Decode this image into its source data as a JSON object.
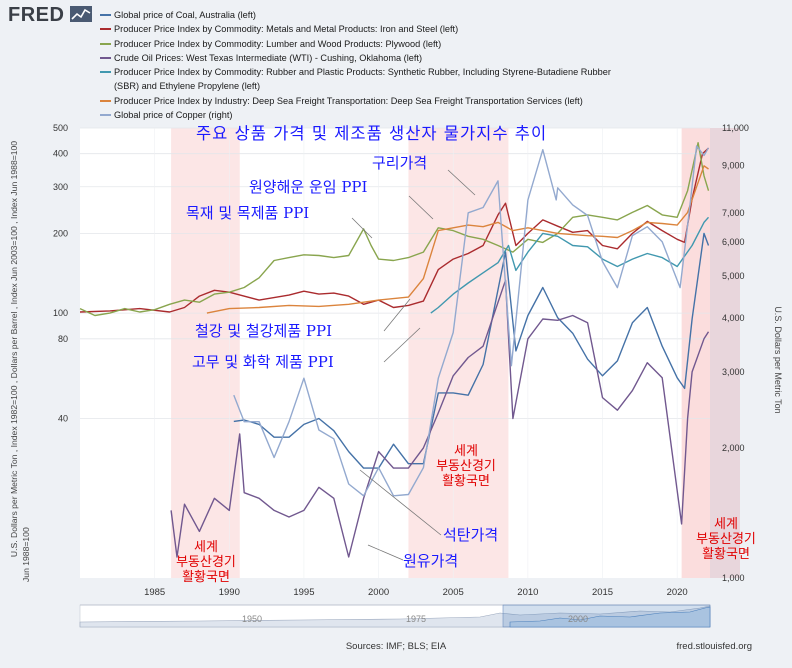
{
  "brand": {
    "name": "FRED"
  },
  "legend": [
    {
      "label": "Global price of Coal, Australia (left)",
      "color": "#4572a7"
    },
    {
      "label": "Producer Price Index by Commodity: Metals and Metal Products: Iron and Steel (left)",
      "color": "#aa2b2e"
    },
    {
      "label": "Producer Price Index by Commodity: Lumber and Wood Products: Plywood (left)",
      "color": "#89a54e"
    },
    {
      "label": "Crude Oil Prices: West Texas Intermediate (WTI) - Cushing, Oklahoma (left)",
      "color": "#71588f"
    },
    {
      "label": "Producer Price Index by Commodity: Rubber and Plastic Products: Synthetic Rubber, Including Styrene-Butadiene Rubber",
      "label_cont": "(SBR) and Ethylene Propylene (left)",
      "color": "#4198af"
    },
    {
      "label": "Producer Price Index by Industry: Deep Sea Freight Transportation: Deep Sea Freight Transportation Services (left)",
      "color": "#db843d"
    },
    {
      "label": "Global price of Copper (right)",
      "color": "#93a9cf"
    }
  ],
  "chart_data": {
    "type": "line",
    "title": "주요 상품 가격 및 제조품 생산자 물가지수 추이",
    "x_ticks": [
      "1985",
      "1990",
      "1995",
      "2000",
      "2005",
      "2010",
      "2015",
      "2020"
    ],
    "x_range": [
      1980,
      2022.2
    ],
    "y_left": {
      "scale": "log",
      "label": "U.S. Dollars per Metric Ton , Index 1982=100 , Dollars per Barrel , Index Jun 2003=100 , Index Jun 1988=100",
      "range": [
        10,
        500
      ],
      "ticks": [
        "500",
        "400",
        "300",
        "200",
        "100",
        "80",
        "40"
      ]
    },
    "y_right": {
      "scale": "log",
      "label": "U.S. Dollars per Metric Ton",
      "range": [
        1000,
        11000
      ],
      "ticks": [
        "11,000",
        "9,000",
        "7,000",
        "6,000",
        "5,000",
        "4,000",
        "3,000",
        "2,000",
        "1,000"
      ]
    },
    "shaded_periods": [
      {
        "start": 1986.1,
        "end": 1990.7,
        "label": "세계 부동산경기 활황국면"
      },
      {
        "start": 2002.0,
        "end": 2008.7,
        "label": "세계 부동산경기 활황국면"
      },
      {
        "start": 2020.3,
        "end": 2022.2,
        "label": "세계 부동산경기 활황국면"
      }
    ],
    "series": [
      {
        "name": "Global price of Coal, Australia",
        "axis": "left",
        "color": "#4572a7",
        "points": [
          [
            1990.3,
            39
          ],
          [
            1991,
            39.5
          ],
          [
            1992,
            38
          ],
          [
            1993,
            34
          ],
          [
            1994,
            34
          ],
          [
            1995,
            38
          ],
          [
            1996,
            40
          ],
          [
            1997,
            36
          ],
          [
            1998,
            30
          ],
          [
            1999,
            26
          ],
          [
            2000,
            26
          ],
          [
            2001,
            32
          ],
          [
            2002,
            27
          ],
          [
            2003,
            27
          ],
          [
            2004,
            50
          ],
          [
            2005,
            50
          ],
          [
            2006,
            49
          ],
          [
            2007,
            64
          ],
          [
            2008.5,
            170
          ],
          [
            2009.2,
            72
          ],
          [
            2010,
            98
          ],
          [
            2011,
            125
          ],
          [
            2012,
            96
          ],
          [
            2013,
            84
          ],
          [
            2014,
            67
          ],
          [
            2015,
            58
          ],
          [
            2016,
            66
          ],
          [
            2017,
            92
          ],
          [
            2018,
            105
          ],
          [
            2019,
            75
          ],
          [
            2020,
            57
          ],
          [
            2020.5,
            52
          ],
          [
            2021,
            95
          ],
          [
            2021.8,
            200
          ],
          [
            2022.1,
            180
          ]
        ]
      },
      {
        "name": "PPI Iron and Steel",
        "axis": "left",
        "color": "#aa2b2e",
        "points": [
          [
            1980,
            101
          ],
          [
            1982,
            102
          ],
          [
            1984,
            104
          ],
          [
            1986,
            101
          ],
          [
            1987,
            105
          ],
          [
            1988,
            116
          ],
          [
            1989,
            122
          ],
          [
            1990,
            120
          ],
          [
            1992,
            112
          ],
          [
            1994,
            117
          ],
          [
            1995,
            121
          ],
          [
            1996,
            118
          ],
          [
            1997,
            119
          ],
          [
            1998,
            116
          ],
          [
            1999,
            108
          ],
          [
            2000,
            112
          ],
          [
            2001,
            105
          ],
          [
            2002,
            107
          ],
          [
            2003,
            111
          ],
          [
            2004,
            146
          ],
          [
            2005,
            160
          ],
          [
            2006,
            168
          ],
          [
            2007,
            180
          ],
          [
            2008,
            235
          ],
          [
            2008.5,
            260
          ],
          [
            2009.2,
            180
          ],
          [
            2010,
            200
          ],
          [
            2011,
            225
          ],
          [
            2012,
            213
          ],
          [
            2013,
            202
          ],
          [
            2014,
            205
          ],
          [
            2015,
            180
          ],
          [
            2016,
            175
          ],
          [
            2017,
            200
          ],
          [
            2018,
            222
          ],
          [
            2019,
            205
          ],
          [
            2020,
            190
          ],
          [
            2020.5,
            185
          ],
          [
            2021,
            270
          ],
          [
            2021.7,
            400
          ],
          [
            2022.1,
            420
          ]
        ]
      },
      {
        "name": "PPI Plywood",
        "axis": "left",
        "color": "#89a54e",
        "points": [
          [
            1980,
            104
          ],
          [
            1981,
            98
          ],
          [
            1982,
            100
          ],
          [
            1983,
            104
          ],
          [
            1984,
            101
          ],
          [
            1985,
            103
          ],
          [
            1986,
            108
          ],
          [
            1987,
            112
          ],
          [
            1988,
            110
          ],
          [
            1989,
            118
          ],
          [
            1990,
            120
          ],
          [
            1991,
            125
          ],
          [
            1992,
            136
          ],
          [
            1993,
            158
          ],
          [
            1994,
            162
          ],
          [
            1995,
            166
          ],
          [
            1996,
            165
          ],
          [
            1997,
            162
          ],
          [
            1998,
            165
          ],
          [
            1999,
            208
          ],
          [
            1999.5,
            180
          ],
          [
            2000,
            160
          ],
          [
            2001,
            158
          ],
          [
            2002,
            162
          ],
          [
            2003,
            170
          ],
          [
            2004,
            210
          ],
          [
            2005,
            205
          ],
          [
            2006,
            195
          ],
          [
            2007,
            190
          ],
          [
            2008,
            180
          ],
          [
            2009,
            170
          ],
          [
            2010,
            190
          ],
          [
            2011,
            185
          ],
          [
            2012,
            200
          ],
          [
            2013,
            230
          ],
          [
            2014,
            235
          ],
          [
            2015,
            230
          ],
          [
            2016,
            225
          ],
          [
            2017,
            240
          ],
          [
            2018,
            255
          ],
          [
            2019,
            235
          ],
          [
            2020,
            230
          ],
          [
            2020.7,
            290
          ],
          [
            2021.4,
            440
          ],
          [
            2021.8,
            330
          ],
          [
            2022.1,
            290
          ]
        ]
      },
      {
        "name": "Crude Oil WTI",
        "axis": "left",
        "color": "#71588f",
        "points": [
          [
            1986.1,
            18
          ],
          [
            1986.5,
            12
          ],
          [
            1987,
            19
          ],
          [
            1988,
            15
          ],
          [
            1989,
            20
          ],
          [
            1990,
            18
          ],
          [
            1990.7,
            35
          ],
          [
            1991,
            21
          ],
          [
            1992,
            20
          ],
          [
            1993,
            18
          ],
          [
            1994,
            17
          ],
          [
            1995,
            18
          ],
          [
            1996,
            22
          ],
          [
            1997,
            20
          ],
          [
            1998,
            12
          ],
          [
            1999,
            20
          ],
          [
            2000,
            30
          ],
          [
            2001,
            26
          ],
          [
            2002,
            26
          ],
          [
            2003,
            31
          ],
          [
            2004,
            42
          ],
          [
            2005,
            58
          ],
          [
            2006,
            68
          ],
          [
            2007,
            75
          ],
          [
            2008.5,
            133
          ],
          [
            2009,
            40
          ],
          [
            2010,
            80
          ],
          [
            2011,
            95
          ],
          [
            2012,
            94
          ],
          [
            2013,
            98
          ],
          [
            2014,
            92
          ],
          [
            2015,
            48
          ],
          [
            2016,
            43
          ],
          [
            2017,
            51
          ],
          [
            2018,
            65
          ],
          [
            2019,
            57
          ],
          [
            2020.3,
            16
          ],
          [
            2020.7,
            40
          ],
          [
            2021,
            60
          ],
          [
            2021.8,
            80
          ],
          [
            2022.1,
            85
          ]
        ]
      },
      {
        "name": "PPI Synthetic Rubber",
        "axis": "left",
        "color": "#4198af",
        "points": [
          [
            2003.5,
            100
          ],
          [
            2004,
            105
          ],
          [
            2005,
            118
          ],
          [
            2006,
            130
          ],
          [
            2007,
            142
          ],
          [
            2008,
            155
          ],
          [
            2008.7,
            180
          ],
          [
            2009.2,
            145
          ],
          [
            2010,
            170
          ],
          [
            2011,
            200
          ],
          [
            2012,
            195
          ],
          [
            2013,
            180
          ],
          [
            2014,
            178
          ],
          [
            2015,
            160
          ],
          [
            2016,
            150
          ],
          [
            2017,
            160
          ],
          [
            2018,
            168
          ],
          [
            2019,
            162
          ],
          [
            2020,
            150
          ],
          [
            2021,
            180
          ],
          [
            2021.8,
            220
          ],
          [
            2022.1,
            230
          ]
        ]
      },
      {
        "name": "PPI Deep Sea Freight",
        "axis": "left",
        "color": "#db843d",
        "points": [
          [
            1988.5,
            100
          ],
          [
            1990,
            104
          ],
          [
            1992,
            105
          ],
          [
            1994,
            107
          ],
          [
            1996,
            106
          ],
          [
            1998,
            108
          ],
          [
            2000,
            112
          ],
          [
            2002,
            115
          ],
          [
            2003,
            135
          ],
          [
            2004,
            205
          ],
          [
            2005,
            210
          ],
          [
            2006,
            215
          ],
          [
            2007,
            212
          ],
          [
            2008,
            220
          ],
          [
            2009,
            205
          ],
          [
            2010,
            210
          ],
          [
            2011,
            205
          ],
          [
            2012,
            200
          ],
          [
            2013,
            198
          ],
          [
            2014,
            196
          ],
          [
            2015,
            195
          ],
          [
            2016,
            193
          ],
          [
            2017,
            205
          ],
          [
            2018,
            220
          ],
          [
            2019,
            218
          ],
          [
            2020,
            215
          ],
          [
            2020.7,
            240
          ],
          [
            2021.3,
            300
          ],
          [
            2021.8,
            360
          ],
          [
            2022.1,
            350
          ]
        ]
      },
      {
        "name": "Global price of Copper",
        "axis": "right",
        "color": "#93a9cf",
        "points": [
          [
            1990.3,
            2650
          ],
          [
            1991,
            2300
          ],
          [
            1992,
            2300
          ],
          [
            1993,
            1900
          ],
          [
            1994,
            2300
          ],
          [
            1995,
            2900
          ],
          [
            1996,
            2200
          ],
          [
            1997,
            2100
          ],
          [
            1998,
            1650
          ],
          [
            1999,
            1550
          ],
          [
            2000,
            1800
          ],
          [
            2001,
            1550
          ],
          [
            2002,
            1560
          ],
          [
            2003,
            1800
          ],
          [
            2004,
            2900
          ],
          [
            2005,
            3700
          ],
          [
            2006,
            7000
          ],
          [
            2007,
            7200
          ],
          [
            2008,
            8300
          ],
          [
            2008.9,
            3100
          ],
          [
            2009.5,
            5000
          ],
          [
            2010,
            7500
          ],
          [
            2011,
            9800
          ],
          [
            2011.9,
            7500
          ],
          [
            2012,
            8000
          ],
          [
            2013,
            7300
          ],
          [
            2014,
            6900
          ],
          [
            2015,
            5400
          ],
          [
            2016,
            4700
          ],
          [
            2017,
            6200
          ],
          [
            2018,
            6500
          ],
          [
            2019,
            6000
          ],
          [
            2020.2,
            4700
          ],
          [
            2020.8,
            7000
          ],
          [
            2021.3,
            10000
          ],
          [
            2021.8,
            9500
          ],
          [
            2022.1,
            9900
          ]
        ]
      }
    ],
    "annotations": [
      {
        "text": "주요 상품 가격 및 제조품 생산자 물가지수 추이",
        "color": "#1a1aff"
      },
      {
        "text": "구리가격",
        "color": "#1a1aff"
      },
      {
        "text": "원양해운 운임 PPI",
        "color": "#1a1aff"
      },
      {
        "text": "목재 및 목제품 PPI",
        "color": "#1a1aff"
      },
      {
        "text": "철강 및  철강제품 PPI",
        "color": "#1a1aff"
      },
      {
        "text": "고무 및 화학 제품 PPI",
        "color": "#1a1aff"
      },
      {
        "text": "석탄가격",
        "color": "#1a1aff"
      },
      {
        "text": "원유가격",
        "color": "#1a1aff"
      },
      {
        "text": "세계 부동산경기 활황국면",
        "color": "#e00000"
      }
    ]
  },
  "navigator": {
    "ticks": [
      "1950",
      "1975",
      "2000"
    ]
  },
  "footer": {
    "sources": "Sources: IMF; BLS; EIA",
    "url": "fred.stlouisfed.org"
  }
}
